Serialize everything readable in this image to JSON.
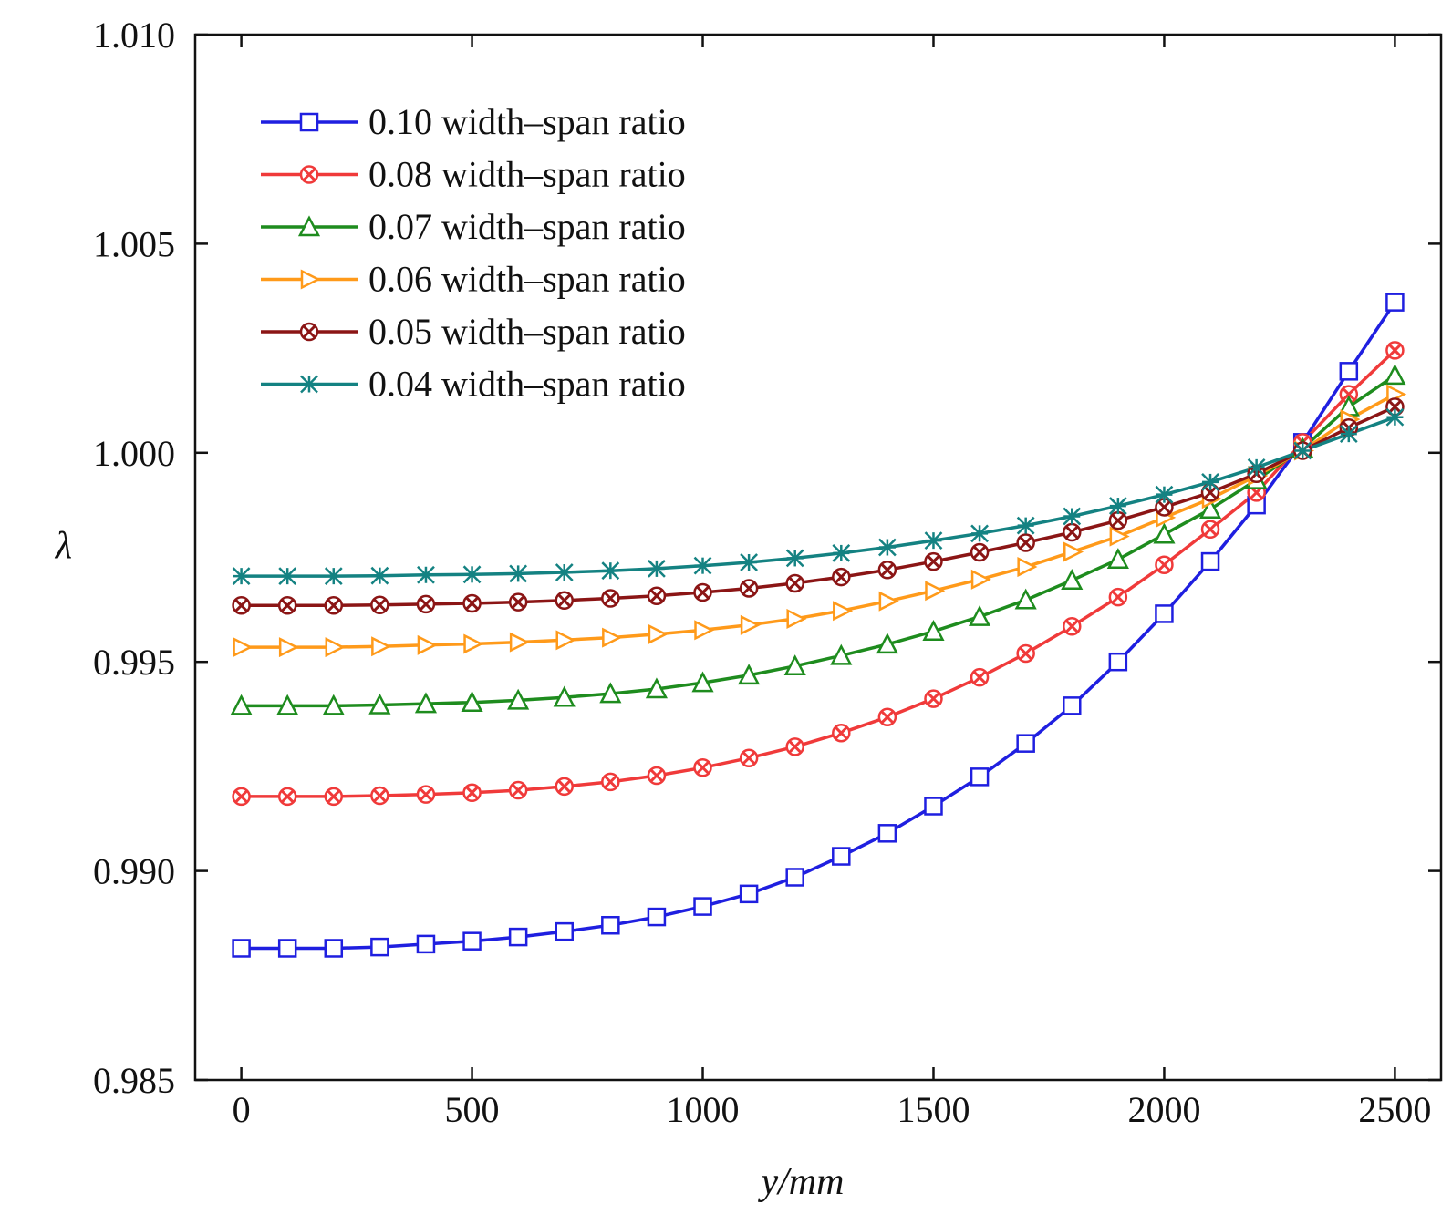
{
  "chart_data": {
    "type": "line",
    "title": "",
    "xlabel": "y/mm",
    "ylabel": "λ",
    "xlim": [
      -100,
      2600
    ],
    "ylim": [
      0.985,
      1.01
    ],
    "xticks": [
      0,
      500,
      1000,
      1500,
      2000,
      2500
    ],
    "xtick_labels": [
      "0",
      "500",
      "1000",
      "1500",
      "2000",
      "2500"
    ],
    "yticks": [
      0.985,
      0.99,
      0.995,
      1.0,
      1.005,
      1.01
    ],
    "ytick_labels": [
      "0.985",
      "0.990",
      "0.995",
      "1.000",
      "1.005",
      "1.010"
    ],
    "grid": false,
    "legend_position": "top-left",
    "x": [
      0,
      100,
      200,
      300,
      400,
      500,
      600,
      700,
      800,
      900,
      1000,
      1100,
      1200,
      1300,
      1400,
      1500,
      1600,
      1700,
      1800,
      1900,
      2000,
      2100,
      2200,
      2300,
      2400,
      2500
    ],
    "series": [
      {
        "name": "0.10 width–span ratio",
        "color": "#1f1fe0",
        "marker": "square",
        "values": [
          0.98815,
          0.98815,
          0.98815,
          0.98818,
          0.98825,
          0.98832,
          0.98842,
          0.98855,
          0.9887,
          0.9889,
          0.98915,
          0.98945,
          0.98985,
          0.99035,
          0.9909,
          0.99155,
          0.99225,
          0.99305,
          0.99395,
          0.995,
          0.99615,
          0.9974,
          0.99875,
          1.00025,
          1.00195,
          1.0036
        ]
      },
      {
        "name": "0.08 width–span ratio",
        "color": "#f03a3a",
        "marker": "x-circle",
        "values": [
          0.99178,
          0.99178,
          0.99178,
          0.9918,
          0.99183,
          0.99187,
          0.99193,
          0.99202,
          0.99213,
          0.99228,
          0.99247,
          0.9927,
          0.99297,
          0.9933,
          0.99368,
          0.99412,
          0.99463,
          0.9952,
          0.99585,
          0.99655,
          0.99732,
          0.99817,
          0.99905,
          1.00025,
          1.0014,
          1.00245
        ]
      },
      {
        "name": "0.07 width–span ratio",
        "color": "#1e8c1e",
        "marker": "triangle",
        "values": [
          0.99395,
          0.99395,
          0.99395,
          0.99397,
          0.994,
          0.99403,
          0.99408,
          0.99415,
          0.99424,
          0.99435,
          0.9945,
          0.99468,
          0.9949,
          0.99515,
          0.99542,
          0.99573,
          0.99608,
          0.99648,
          0.99695,
          0.99745,
          0.99805,
          0.99865,
          0.99935,
          1.0001,
          1.0011,
          1.00185
        ]
      },
      {
        "name": "0.06 width–span ratio",
        "color": "#ff9a1a",
        "marker": "triangle-right",
        "values": [
          0.99535,
          0.99535,
          0.99535,
          0.99537,
          0.9954,
          0.99543,
          0.99547,
          0.99552,
          0.99558,
          0.99566,
          0.99576,
          0.99588,
          0.99603,
          0.99622,
          0.99645,
          0.9967,
          0.99697,
          0.99727,
          0.99763,
          0.998,
          0.99845,
          0.9989,
          0.99945,
          1.00005,
          1.0008,
          1.0014
        ]
      },
      {
        "name": "0.05 width–span ratio",
        "color": "#8b1515",
        "marker": "x-circle",
        "values": [
          0.99635,
          0.99635,
          0.99635,
          0.99636,
          0.99638,
          0.9964,
          0.99643,
          0.99647,
          0.99652,
          0.99658,
          0.99666,
          0.99676,
          0.99688,
          0.99703,
          0.9972,
          0.9974,
          0.99762,
          0.99785,
          0.9981,
          0.99838,
          0.9987,
          0.99905,
          0.9995,
          1.00005,
          1.0006,
          1.0011
        ]
      },
      {
        "name": "0.04 width–span ratio",
        "color": "#148282",
        "marker": "asterisk",
        "values": [
          0.99705,
          0.99705,
          0.99705,
          0.99706,
          0.99708,
          0.99709,
          0.99711,
          0.99714,
          0.99718,
          0.99723,
          0.9973,
          0.99738,
          0.99748,
          0.9976,
          0.99774,
          0.9979,
          0.99807,
          0.99826,
          0.99848,
          0.99873,
          0.999,
          0.9993,
          0.99965,
          1.00005,
          1.00045,
          1.00085
        ]
      }
    ]
  }
}
